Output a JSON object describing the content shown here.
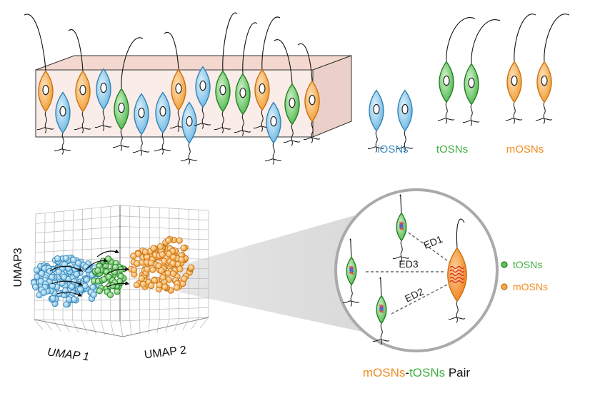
{
  "colors": {
    "iosn_fill": "#8ec9ea",
    "iosn_stroke": "#2c7fb0",
    "tosn_fill": "#5cc25c",
    "tosn_stroke": "#1e7a1e",
    "mosn_fill": "#f7a94a",
    "mosn_stroke": "#c46d0f",
    "epithelium_fill": "#f8e8e4",
    "label_blue": "#3b8fc8",
    "label_green": "#3fae3f",
    "label_orange": "#f08c1f"
  },
  "cell_type_labels": {
    "iosn": "iOSNs",
    "tosn": "tOSNs",
    "mosn": "mOSNs"
  },
  "umap": {
    "axis_x": "UMAP 1",
    "axis_y": "UMAP 2",
    "axis_z": "UMAP3"
  },
  "zoom_panel": {
    "edges": [
      "ED1",
      "ED3",
      "ED2"
    ],
    "legend": [
      {
        "label": "tOSNs",
        "color": "#3fae3f"
      },
      {
        "label": "mOSNs",
        "color": "#f08c1f"
      }
    ]
  },
  "pair_caption": {
    "part1": "mOSNs",
    "part2": "-",
    "part3": "tOSNs",
    "part4": " Pair"
  }
}
